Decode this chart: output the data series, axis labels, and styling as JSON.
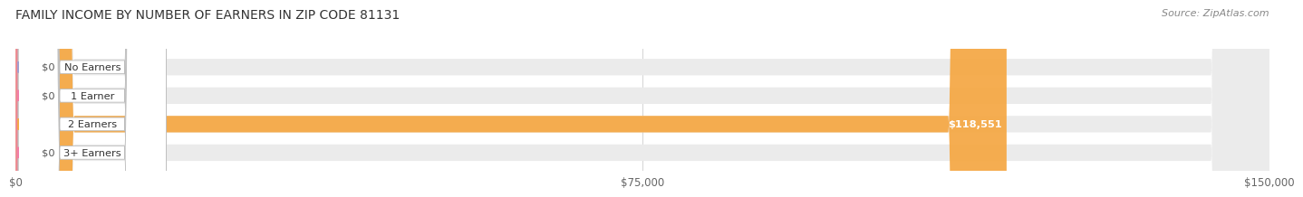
{
  "title": "FAMILY INCOME BY NUMBER OF EARNERS IN ZIP CODE 81131",
  "source": "Source: ZipAtlas.com",
  "categories": [
    "No Earners",
    "1 Earner",
    "2 Earners",
    "3+ Earners"
  ],
  "values": [
    0,
    0,
    118551,
    0
  ],
  "bar_colors": [
    "#a0a0d0",
    "#f080a8",
    "#f5a947",
    "#f080a8"
  ],
  "bar_bg_color": "#ebebeb",
  "bar_labels": [
    "$0",
    "$0",
    "$118,551",
    "$0"
  ],
  "xlim": [
    0,
    150000
  ],
  "xtick_values": [
    0,
    75000,
    150000
  ],
  "xtick_labels": [
    "$0",
    "$75,000",
    "$150,000"
  ],
  "bar_height": 0.58,
  "bg_color": "#ffffff"
}
